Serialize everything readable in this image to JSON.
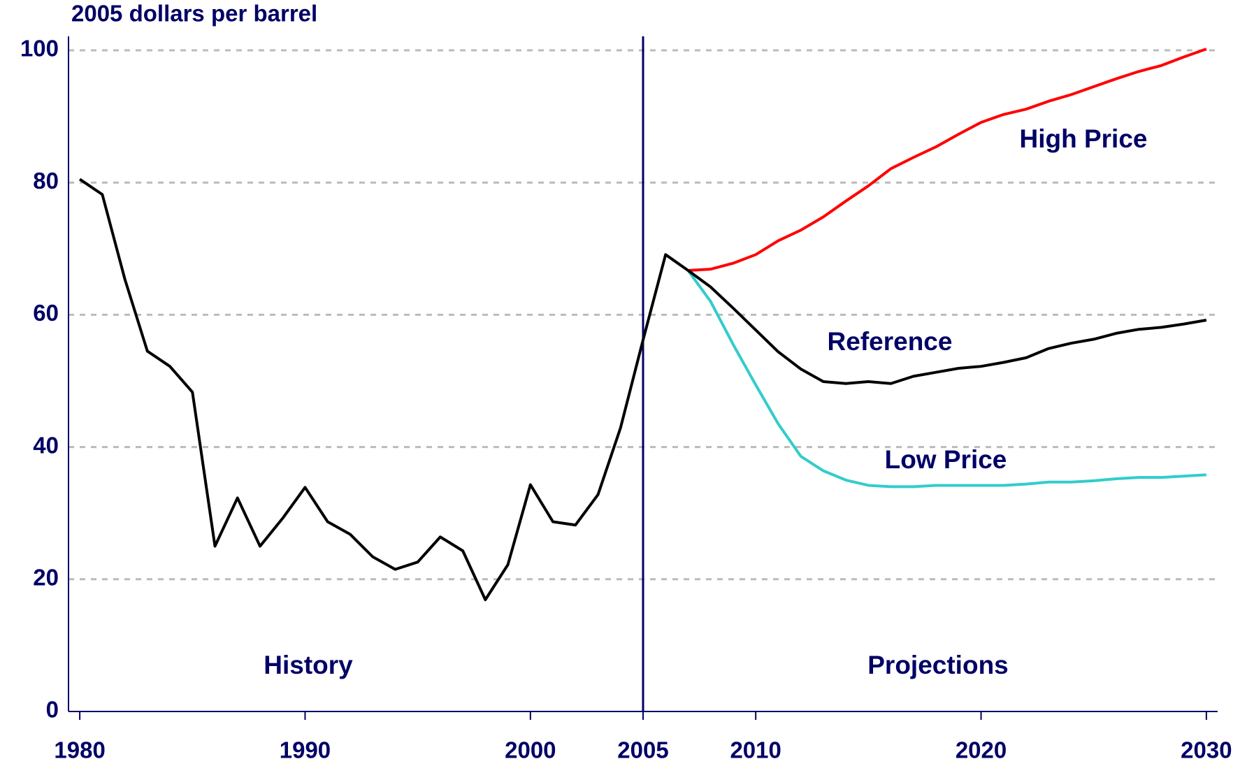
{
  "chart_data": {
    "type": "line",
    "title": "2005 dollars per barrel",
    "annotation": "Projections",
    "vline": 2005,
    "xlim": [
      1979.5,
      2030.5
    ],
    "xticks": [
      1980,
      1990,
      2000,
      2005,
      2010,
      2020,
      2030
    ],
    "ylim": [
      0,
      100
    ],
    "yticks": [
      0,
      20,
      40,
      60,
      80,
      100
    ],
    "grid": true,
    "series": [
      {
        "name": "History",
        "color": "#000000",
        "x": [
          1980,
          1981,
          1982,
          1983,
          1984,
          1985,
          1986,
          1987,
          1988,
          1989,
          1990,
          1991,
          1992,
          1993,
          1994,
          1995,
          1996,
          1997,
          1998,
          1999,
          2000,
          2001,
          2002,
          2003,
          2004,
          2005,
          2006,
          2007
        ],
        "values": [
          80.5,
          78.2,
          65.4,
          54.5,
          52.2,
          48.3,
          25,
          32.3,
          25,
          29.2,
          33.9,
          28.7,
          26.8,
          23.4,
          21.5,
          22.6,
          26.4,
          24.3,
          16.9,
          22.2,
          34.3,
          28.7,
          28.2,
          32.8,
          42.9,
          56.2,
          69.1,
          66.7
        ]
      },
      {
        "name": "Reference",
        "color": "#000000",
        "x": [
          2007,
          2008,
          2009,
          2010,
          2011,
          2012,
          2013,
          2014,
          2015,
          2016,
          2017,
          2018,
          2019,
          2020,
          2021,
          2022,
          2023,
          2024,
          2025,
          2026,
          2027,
          2028,
          2029,
          2030
        ],
        "values": [
          66.7,
          64.2,
          61,
          57.7,
          54.4,
          51.8,
          49.9,
          49.6,
          49.9,
          49.6,
          50.7,
          51.3,
          51.9,
          52.2,
          52.8,
          53.5,
          54.9,
          55.7,
          56.3,
          57.2,
          57.8,
          58.1,
          58.6,
          59.2
        ]
      },
      {
        "name": "High Price",
        "color": "#ff0000",
        "x": [
          2007,
          2008,
          2009,
          2010,
          2011,
          2012,
          2013,
          2014,
          2015,
          2016,
          2017,
          2018,
          2019,
          2020,
          2021,
          2022,
          2023,
          2024,
          2025,
          2026,
          2027,
          2028,
          2029,
          2030
        ],
        "values": [
          66.7,
          66.9,
          67.8,
          69.1,
          71.2,
          72.8,
          74.8,
          77.2,
          79.5,
          82.1,
          83.8,
          85.4,
          87.3,
          89.1,
          90.3,
          91.1,
          92.3,
          93.3,
          94.5,
          95.7,
          96.8,
          97.7,
          99,
          100.2
        ]
      },
      {
        "name": "Low Price",
        "color": "#33cccc",
        "x": [
          2007,
          2008,
          2009,
          2010,
          2011,
          2012,
          2013,
          2014,
          2015,
          2016,
          2017,
          2018,
          2019,
          2020,
          2021,
          2022,
          2023,
          2024,
          2025,
          2026,
          2027,
          2028,
          2029,
          2030
        ],
        "values": [
          66.7,
          62,
          55.5,
          49.4,
          43.5,
          38.6,
          36.4,
          35,
          34.2,
          34,
          34,
          34.2,
          34.2,
          34.2,
          34.2,
          34.4,
          34.7,
          34.7,
          34.9,
          35.2,
          35.4,
          35.4,
          35.6,
          35.8
        ]
      }
    ]
  }
}
